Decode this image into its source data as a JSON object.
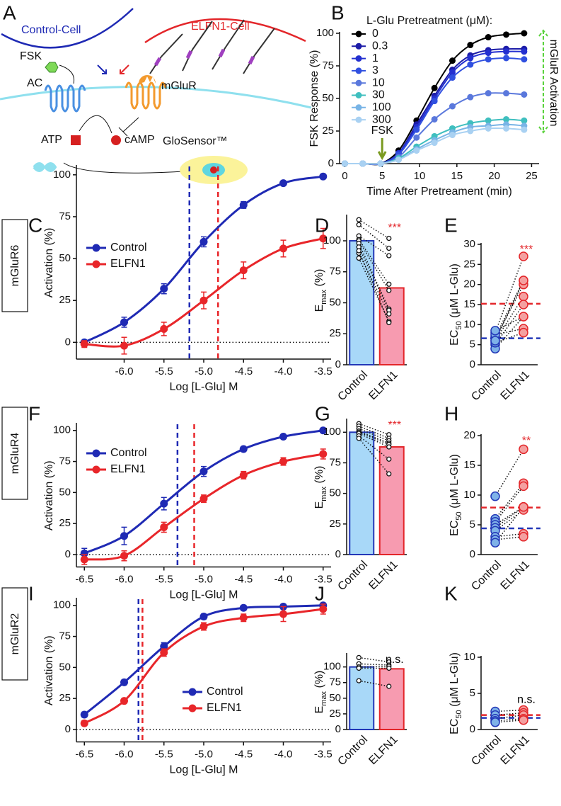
{
  "diagram": {
    "panel": "A",
    "labels": [
      "Control-Cell",
      "ELFN1-Cell",
      "FSK",
      "AC",
      "mGluR",
      "ATP",
      "cAMP",
      "GloSensor™"
    ]
  },
  "chart_data": [
    {
      "type": "line",
      "panel": "B",
      "legend_title": "L-Glu Pretreatment (μM):",
      "xlabel": "Time After Pretreament (min)",
      "ylabel": "FSK Response (%)",
      "x": [
        0,
        2.4,
        4.8,
        7.2,
        9.6,
        12,
        14.4,
        16.8,
        19.2,
        21.6,
        24
      ],
      "xlim": [
        -0.7,
        26
      ],
      "xticks": [
        0,
        5,
        10,
        15,
        20,
        25
      ],
      "ylim": [
        0,
        100
      ],
      "yticks": [
        0,
        25,
        50,
        75,
        100
      ],
      "annotations": [
        {
          "text": "FSK",
          "x": 5
        },
        {
          "text": "mGluR Activation"
        }
      ],
      "series": [
        {
          "name": "0",
          "color": "#000000",
          "values": [
            0,
            0,
            0,
            10,
            33,
            58,
            79,
            91,
            97,
            99,
            100
          ]
        },
        {
          "name": "0.3",
          "color": "#1c1ca8",
          "values": [
            0,
            0,
            0,
            8,
            30,
            52,
            72,
            83,
            87,
            88,
            88
          ]
        },
        {
          "name": "1",
          "color": "#2430d0",
          "values": [
            0,
            0,
            0,
            8,
            28,
            50,
            70,
            81,
            85,
            86,
            86
          ]
        },
        {
          "name": "3",
          "color": "#3050e0",
          "values": [
            0,
            0,
            0,
            7,
            26,
            48,
            66,
            76,
            80,
            81,
            80
          ]
        },
        {
          "name": "10",
          "color": "#5a78dc",
          "values": [
            0,
            0,
            0,
            5,
            20,
            34,
            44,
            51,
            54,
            54,
            53
          ]
        },
        {
          "name": "30",
          "color": "#3fbfbf",
          "values": [
            0,
            0,
            0,
            4,
            13,
            21,
            27,
            31,
            33,
            34,
            33
          ]
        },
        {
          "name": "100",
          "color": "#78b4e6",
          "values": [
            0,
            0,
            0,
            3,
            11,
            18,
            24,
            28,
            29,
            30,
            29
          ]
        },
        {
          "name": "300",
          "color": "#a9d1f2",
          "values": [
            0,
            0,
            0,
            3,
            10,
            16,
            22,
            25,
            27,
            27,
            26
          ]
        }
      ]
    },
    {
      "type": "dose-response",
      "panel": "C",
      "row_label": "mGluR6",
      "xlabel": "Log [L-Glu] M",
      "ylabel": "Activation (%)",
      "x": [
        -6.5,
        -6,
        -5.5,
        -5,
        -4.5,
        -4,
        -3.5
      ],
      "xlim": [
        -6.6,
        -3.4
      ],
      "xticks": [
        {
          "value": -6,
          "label": "-6.0"
        },
        -5.5,
        {
          "value": -5,
          "label": "-5.0"
        },
        -4.5,
        {
          "value": -4,
          "label": "-4.0"
        },
        -3.5
      ],
      "ylim": [
        -10,
        105
      ],
      "yticks": [
        0,
        25,
        50,
        75,
        100
      ],
      "legend": "upper left",
      "series": [
        {
          "name": "Control",
          "color": "#1f2ab4",
          "values": [
            0,
            12,
            32,
            60,
            82,
            95,
            99
          ],
          "errors": [
            1,
            3,
            3,
            3,
            2,
            1,
            1
          ],
          "ec50": -5.18
        },
        {
          "name": "ELFN1",
          "color": "#e8262a",
          "values": [
            -1,
            -2,
            8,
            25,
            43,
            56,
            62
          ],
          "errors": [
            2,
            5,
            4,
            5,
            5,
            5,
            6
          ],
          "ec50": -4.82
        }
      ]
    },
    {
      "type": "paired",
      "panel": "D",
      "ylabel": [
        "E",
        "max",
        " (%)"
      ],
      "categories": [
        "Control",
        "ELFN1"
      ],
      "values": [
        100,
        62
      ],
      "bars": true,
      "colors": [
        "#a8d8f8",
        "#f79bb0"
      ],
      "edge_colors": [
        "#2338b8",
        "#e3262a"
      ],
      "ylim": [
        0,
        120
      ],
      "yticks": [
        0,
        25,
        50,
        75,
        100
      ],
      "individual": [
        [
          117,
          113,
          104,
          101,
          100,
          98,
          95,
          90,
          86,
          92
        ],
        [
          102,
          94,
          88,
          65,
          60,
          45,
          44,
          41,
          35,
          34
        ]
      ],
      "significance": "***",
      "significance_color": "#e3262a"
    },
    {
      "type": "paired",
      "panel": "E",
      "ylabel": [
        "EC",
        "50",
        "  (μM L-Glu)"
      ],
      "categories": [
        "Control",
        "ELFN1"
      ],
      "values": [
        6.6,
        15.2
      ],
      "bars": false,
      "colors": [
        "#7fb2e8",
        "#f4a0a0"
      ],
      "edge_colors": [
        "#2338b8",
        "#e3262a"
      ],
      "ylim": [
        0,
        30
      ],
      "yticks": [
        0,
        5,
        10,
        15,
        20,
        25,
        30
      ],
      "individual": [
        [
          8,
          7,
          6.5,
          6,
          5,
          4,
          7.5,
          5.5,
          6,
          8.5
        ],
        [
          27,
          21,
          20,
          17,
          15,
          12,
          9,
          8,
          21,
          12
        ]
      ],
      "significance": "***",
      "significance_color": "#e3262a"
    },
    {
      "type": "dose-response",
      "panel": "F",
      "row_label": "mGluR4",
      "xlabel": "Log [L-Glu] M",
      "ylabel": "Activation (%)",
      "x": [
        -6.5,
        -6,
        -5.5,
        -5,
        -4.5,
        -4,
        -3.5
      ],
      "xlim": [
        -6.6,
        -3.4
      ],
      "xticks": [
        -6.5,
        {
          "value": -6,
          "label": "-6.0"
        },
        -5.5,
        {
          "value": -5,
          "label": "-5.0"
        },
        -4.5,
        {
          "value": -4,
          "label": "-4.0"
        },
        -3.5
      ],
      "ylim": [
        -10,
        105
      ],
      "yticks": [
        0,
        25,
        50,
        75,
        100
      ],
      "legend": "upper left",
      "series": [
        {
          "name": "Control",
          "color": "#1f2ab4",
          "values": [
            1,
            15,
            41,
            67,
            85,
            95,
            100
          ],
          "errors": [
            4,
            7,
            5,
            4,
            2,
            1,
            1
          ],
          "ec50": -5.33
        },
        {
          "name": "ELFN1",
          "color": "#e8262a",
          "values": [
            -4,
            -1,
            22,
            45,
            64,
            75,
            81
          ],
          "errors": [
            4,
            4,
            4,
            3,
            3,
            3,
            4
          ],
          "ec50": -5.12
        }
      ]
    },
    {
      "type": "paired",
      "panel": "G",
      "ylabel": [
        "E",
        "max",
        " (%)"
      ],
      "categories": [
        "Control",
        "ELFN1"
      ],
      "values": [
        100,
        88
      ],
      "bars": true,
      "colors": [
        "#a8d8f8",
        "#f79bb0"
      ],
      "edge_colors": [
        "#2338b8",
        "#e3262a"
      ],
      "ylim": [
        0,
        110
      ],
      "yticks": [
        0,
        25,
        50,
        75,
        100
      ],
      "individual": [
        [
          107,
          105,
          103,
          101,
          100,
          99,
          97,
          95
        ],
        [
          98,
          95,
          93,
          91,
          90,
          88,
          78,
          66
        ]
      ],
      "significance": "***",
      "significance_color": "#e3262a"
    },
    {
      "type": "paired",
      "panel": "H",
      "ylabel": [
        "EC",
        "50",
        "  (μM L-Glu)"
      ],
      "categories": [
        "Control",
        "ELFN1"
      ],
      "values": [
        4.4,
        7.9
      ],
      "bars": false,
      "colors": [
        "#7fb2e8",
        "#f4a0a0"
      ],
      "edge_colors": [
        "#2338b8",
        "#e3262a"
      ],
      "ylim": [
        0,
        20
      ],
      "yticks": [
        0,
        5,
        10,
        15,
        20
      ],
      "individual": [
        [
          9.8,
          6,
          5.5,
          5,
          4.5,
          4,
          3,
          2.5,
          2
        ],
        [
          17.7,
          12,
          11.5,
          8,
          8,
          7.5,
          3.5,
          3,
          8
        ]
      ],
      "significance": "**",
      "significance_color": "#e3262a"
    },
    {
      "type": "dose-response",
      "panel": "I",
      "row_label": "mGluR2",
      "xlabel": "Log [L-Glu] M",
      "ylabel": "Activation (%)",
      "x": [
        -6.5,
        -6,
        -5.5,
        -5,
        -4.5,
        -4,
        -3.5
      ],
      "xlim": [
        -6.6,
        -3.4
      ],
      "xticks": [
        -6.5,
        {
          "value": -6,
          "label": "-6.0"
        },
        -5.5,
        {
          "value": -5,
          "label": "-5.0"
        },
        -4.5,
        {
          "value": -4,
          "label": "-4.0"
        },
        -3.5
      ],
      "ylim": [
        -10,
        105
      ],
      "yticks": [
        0,
        25,
        50,
        75,
        100
      ],
      "legend": "lower right",
      "series": [
        {
          "name": "Control",
          "color": "#1f2ab4",
          "values": [
            12,
            38,
            67,
            91,
            98,
            99,
            100
          ],
          "errors": [
            2,
            2,
            3,
            2,
            2,
            2,
            1
          ],
          "ec50": -5.82
        },
        {
          "name": "ELFN1",
          "color": "#e8262a",
          "values": [
            5,
            23,
            62,
            83,
            90,
            93,
            97
          ],
          "errors": [
            2,
            2,
            3,
            3,
            3,
            6,
            4
          ],
          "ec50": -5.77
        }
      ]
    },
    {
      "type": "paired",
      "panel": "J",
      "ylabel": [
        "E",
        "max",
        " (%)"
      ],
      "categories": [
        "Control",
        "ELFN1"
      ],
      "values": [
        100,
        97
      ],
      "bars": true,
      "colors": [
        "#a8d8f8",
        "#f79bb0"
      ],
      "edge_colors": [
        "#2338b8",
        "#e3262a"
      ],
      "ylim": [
        0,
        120
      ],
      "yticks": [
        0,
        25,
        50,
        75,
        100
      ],
      "individual": [
        [
          115,
          105,
          100,
          98,
          78
        ],
        [
          108,
          103,
          101,
          98,
          69
        ]
      ],
      "significance": "n.s.",
      "significance_color": "#000000"
    },
    {
      "type": "paired",
      "panel": "K",
      "ylabel": [
        "EC",
        "50",
        "  (μM L-Glu)"
      ],
      "categories": [
        "Control",
        "ELFN1"
      ],
      "values": [
        1.6,
        2.0
      ],
      "bars": false,
      "colors": [
        "#7fb2e8",
        "#f4a0a0"
      ],
      "edge_colors": [
        "#2338b8",
        "#e3262a"
      ],
      "ylim": [
        0,
        10
      ],
      "yticks": [
        0,
        5,
        10
      ],
      "individual": [
        [
          2.5,
          2.0,
          1.5,
          1.2,
          1.0
        ],
        [
          2.7,
          2.3,
          2.0,
          1.5,
          1.3
        ]
      ],
      "significance": "n.s.",
      "significance_color": "#000000"
    }
  ]
}
